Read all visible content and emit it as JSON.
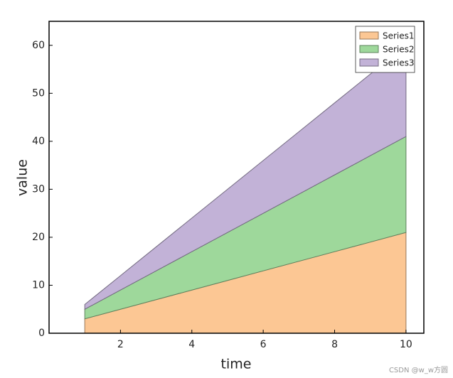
{
  "chart_data": {
    "type": "stacked-area",
    "x_label": "time",
    "y_label": "value",
    "x": [
      1,
      2,
      3,
      4,
      5,
      6,
      7,
      8,
      9,
      10
    ],
    "series": [
      {
        "name": "Series1",
        "color": "#fcc794",
        "values": [
          3,
          5,
          7,
          9,
          11,
          13,
          15,
          17,
          19,
          21
        ]
      },
      {
        "name": "Series2",
        "color": "#9ed89b",
        "values": [
          2,
          4,
          6,
          8,
          10,
          12,
          14,
          16,
          18,
          20
        ]
      },
      {
        "name": "Series3",
        "color": "#c2b2d7",
        "values": [
          1,
          3,
          5,
          7,
          9,
          11,
          13,
          15,
          17,
          19
        ]
      }
    ],
    "xlim": [
      0,
      10.5
    ],
    "xticks": [
      2,
      4,
      6,
      8,
      10
    ],
    "ylim": [
      0,
      65
    ],
    "yticks": [
      0,
      10,
      20,
      30,
      40,
      50,
      60
    ],
    "legend": "upper-right",
    "watermark": "CSDN @w_w方圆"
  }
}
